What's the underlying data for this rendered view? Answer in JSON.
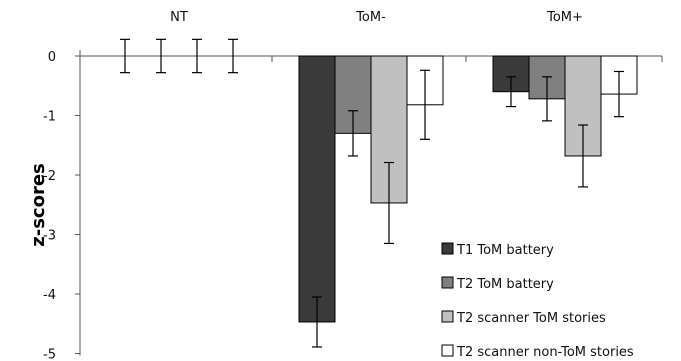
{
  "chart_data": {
    "type": "bar",
    "categories": [
      "NT",
      "ToM-",
      "ToM+"
    ],
    "series": [
      {
        "name": "T1 ToM battery",
        "color": "#3a3a3a",
        "values": [
          0,
          -4.47,
          -0.6
        ],
        "errors": [
          0.28,
          0.42,
          0.25
        ]
      },
      {
        "name": "T2 ToM battery",
        "color": "#808080",
        "values": [
          0,
          -1.3,
          -0.72
        ],
        "errors": [
          0.28,
          0.38,
          0.37
        ]
      },
      {
        "name": "T2 scanner ToM stories",
        "color": "#c0c0c0",
        "values": [
          0,
          -2.47,
          -1.68
        ],
        "errors": [
          0.28,
          0.68,
          0.52
        ]
      },
      {
        "name": "T2 scanner non-ToM stories",
        "color": "#ffffff",
        "values": [
          0,
          -0.82,
          -0.64
        ],
        "errors": [
          0.28,
          0.58,
          0.38
        ]
      }
    ],
    "ylabel": "z-scores",
    "ylim": [
      -5,
      0
    ],
    "yticks": [
      0,
      -1,
      -2,
      -3,
      -4,
      -5
    ],
    "grid": false,
    "legend_position": "bottom-right"
  }
}
